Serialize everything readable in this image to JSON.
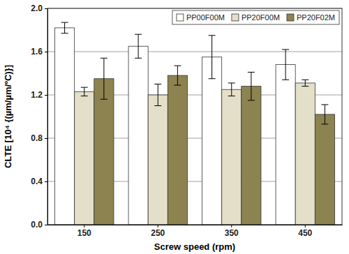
{
  "chart_data": {
    "type": "bar",
    "x_label": "Screw speed (rpm)",
    "y_label": "CLTE [10⁴ {(µm/µm/ºC)}]",
    "categories": [
      "150",
      "250",
      "350",
      "450"
    ],
    "series": [
      {
        "name": "PP00F00M",
        "color": "#ffffff",
        "values": [
          1.82,
          1.65,
          1.55,
          1.48
        ],
        "errors": [
          0.05,
          0.11,
          0.2,
          0.14
        ]
      },
      {
        "name": "PP20F00M",
        "color": "#e3dfc9",
        "values": [
          1.23,
          1.2,
          1.25,
          1.31
        ],
        "errors": [
          0.04,
          0.1,
          0.06,
          0.03
        ]
      },
      {
        "name": "PP20F02M",
        "color": "#8c8350",
        "values": [
          1.35,
          1.38,
          1.28,
          1.02
        ],
        "errors": [
          0.19,
          0.09,
          0.13,
          0.09
        ]
      }
    ],
    "ylim": [
      0,
      2
    ],
    "yticks": [
      {
        "value": 0,
        "label": "0.0"
      },
      0.4,
      0.8,
      1.2,
      1.6,
      {
        "value": 2,
        "label": "2.0"
      }
    ],
    "grid": true,
    "legend": "top-right"
  }
}
